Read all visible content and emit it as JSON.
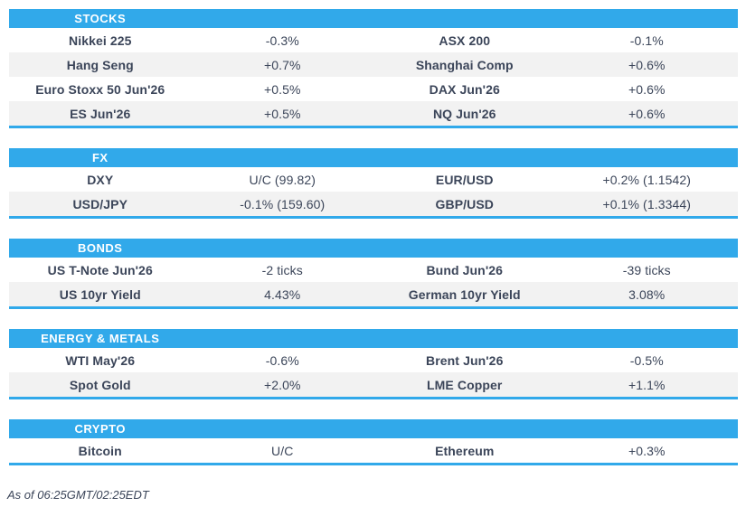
{
  "colors": {
    "accent": "#31a9ea",
    "stripe": "#f2f2f2",
    "text": "#3b4559"
  },
  "sections": [
    {
      "title": "STOCKS",
      "rows": [
        [
          "Nikkei 225",
          "-0.3%",
          "ASX 200",
          "-0.1%"
        ],
        [
          "Hang Seng",
          "+0.7%",
          "Shanghai Comp",
          "+0.6%"
        ],
        [
          "Euro Stoxx 50 Jun'26",
          "+0.5%",
          "DAX Jun'26",
          "+0.6%"
        ],
        [
          "ES Jun'26",
          "+0.5%",
          "NQ Jun'26",
          "+0.6%"
        ]
      ]
    },
    {
      "title": "FX",
      "rows": [
        [
          "DXY",
          "U/C (99.82)",
          "EUR/USD",
          "+0.2% (1.1542)"
        ],
        [
          "USD/JPY",
          "-0.1% (159.60)",
          "GBP/USD",
          "+0.1% (1.3344)"
        ]
      ]
    },
    {
      "title": "BONDS",
      "rows": [
        [
          "US T-Note Jun'26",
          "-2 ticks",
          "Bund Jun'26",
          "-39 ticks"
        ],
        [
          "US 10yr Yield",
          "4.43%",
          "German 10yr Yield",
          "3.08%"
        ]
      ]
    },
    {
      "title": "ENERGY & METALS",
      "rows": [
        [
          "WTI May'26",
          "-0.6%",
          "Brent Jun'26",
          "-0.5%"
        ],
        [
          "Spot Gold",
          "+2.0%",
          "LME Copper",
          "+1.1%"
        ]
      ]
    },
    {
      "title": "CRYPTO",
      "rows": [
        [
          "Bitcoin",
          "U/C",
          "Ethereum",
          "+0.3%"
        ]
      ]
    }
  ],
  "footer": {
    "as_of": "As of 06:25GMT/02:25EDT"
  }
}
